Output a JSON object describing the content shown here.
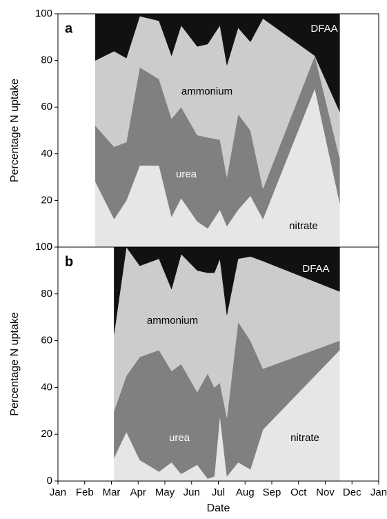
{
  "chart_data": [
    {
      "type": "area",
      "stacked": true,
      "panel": "a",
      "ylabel": "Percentage N uptake",
      "x": [
        2.4,
        3.1,
        3.56,
        4.06,
        4.78,
        5.25,
        5.61,
        6.21,
        6.6,
        7.06,
        7.32,
        7.74,
        8.2,
        8.67,
        10.61,
        11.54
      ],
      "series": [
        {
          "name": "nitrate",
          "color": "#e6e6e6",
          "values": [
            28,
            12,
            20,
            35,
            35,
            13,
            21,
            11,
            8,
            16,
            9,
            16,
            22,
            12,
            68,
            19
          ]
        },
        {
          "name": "urea",
          "color": "#808080",
          "values": [
            24,
            31,
            25,
            42,
            37,
            42,
            39,
            37,
            39,
            30,
            21,
            41,
            28,
            13,
            14,
            19
          ]
        },
        {
          "name": "ammonium",
          "color": "#cccccc",
          "values": [
            28,
            41,
            36,
            22,
            25,
            27,
            35,
            38,
            40,
            49,
            48,
            37,
            38,
            73,
            0,
            20
          ]
        },
        {
          "name": "DFAA",
          "color": "#111111",
          "values": [
            20,
            16,
            19,
            1,
            3,
            18,
            5,
            14,
            13,
            5,
            22,
            6,
            12,
            2,
            18,
            42
          ]
        }
      ],
      "xlim": [
        1,
        13
      ],
      "ylim": [
        0,
        100
      ],
      "yticks": [
        0,
        20,
        40,
        60,
        80,
        100
      ]
    },
    {
      "type": "area",
      "stacked": true,
      "panel": "b",
      "ylabel": "Percentage N uptake",
      "xlabel": "Date",
      "x": [
        3.1,
        3.56,
        4.06,
        4.78,
        5.25,
        5.61,
        6.21,
        6.6,
        6.85,
        7.06,
        7.32,
        7.74,
        8.2,
        8.67,
        11.54
      ],
      "series": [
        {
          "name": "nitrate",
          "color": "#e6e6e6",
          "values": [
            10,
            21,
            9,
            4,
            8,
            3,
            7,
            1,
            2,
            28,
            2,
            8,
            5,
            22,
            56
          ]
        },
        {
          "name": "urea",
          "color": "#808080",
          "values": [
            20,
            24,
            44,
            52,
            39,
            47,
            31,
            45,
            38,
            14,
            25,
            60,
            55,
            26,
            4
          ]
        },
        {
          "name": "ammonium",
          "color": "#cccccc",
          "values": [
            33,
            55,
            39,
            39,
            35,
            47,
            52,
            43,
            49,
            53,
            44,
            27,
            36,
            46,
            21
          ]
        },
        {
          "name": "DFAA",
          "color": "#111111",
          "values": [
            37,
            0,
            8,
            5,
            18,
            3,
            10,
            11,
            11,
            5,
            29,
            5,
            4,
            6,
            19
          ]
        }
      ],
      "xlim": [
        1,
        13
      ],
      "ylim": [
        0,
        100
      ],
      "yticks": [
        0,
        20,
        40,
        60,
        80,
        100
      ],
      "xticks": [
        {
          "value": 1,
          "label": "Jan"
        },
        {
          "value": 2,
          "label": "Feb"
        },
        {
          "value": 3,
          "label": "Mar"
        },
        {
          "value": 4,
          "label": "Apr"
        },
        {
          "value": 5,
          "label": "May"
        },
        {
          "value": 6,
          "label": "Jun"
        },
        {
          "value": 7,
          "label": "Jul"
        },
        {
          "value": 8,
          "label": "Aug"
        },
        {
          "value": 9,
          "label": "Sep"
        },
        {
          "value": 10,
          "label": "Oct"
        },
        {
          "value": 11,
          "label": "Nov"
        },
        {
          "value": 12,
          "label": "Dec"
        },
        {
          "value": 13,
          "label": "Jan"
        }
      ]
    }
  ]
}
